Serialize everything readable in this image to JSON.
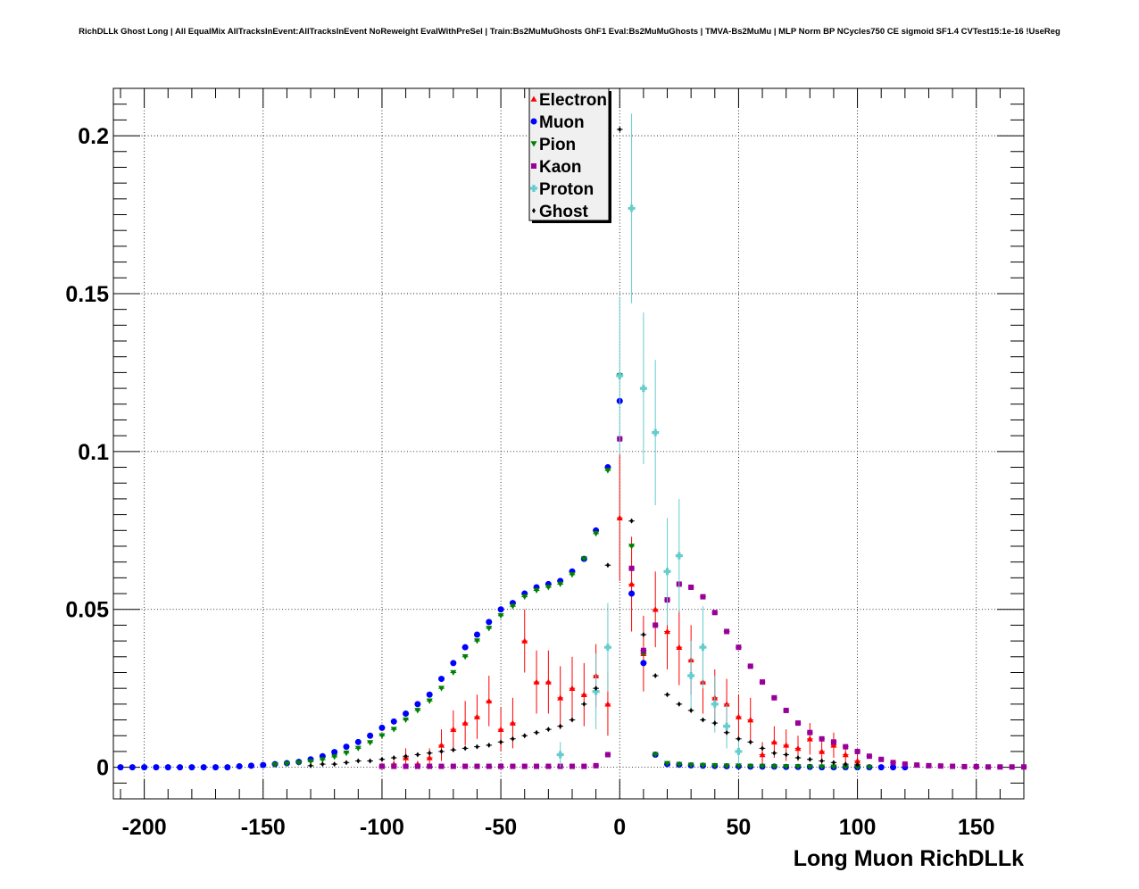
{
  "chart_data": {
    "type": "scatter",
    "title": "RichDLLk Ghost Long | All EqualMix AllTracksInEvent:AllTracksInEvent NoReweight EvalWithPreSel | Train:Bs2MuMuGhosts GhF1 Eval:Bs2MuMuGhosts | TMVA-Bs2MuMu | MLP Norm BP NCycles750 CE sigmoid SF1.4 CVTest15:1e-16 !UseReg",
    "xlabel": "Long Muon RichDLLk",
    "ylabel": "",
    "xlim": [
      -213,
      170
    ],
    "ylim": [
      -0.01,
      0.215
    ],
    "xticks": [
      -200,
      -150,
      -100,
      -50,
      0,
      50,
      100,
      150
    ],
    "xtick_labels": [
      "-200",
      "-150",
      "-100",
      "-50",
      "0",
      "50",
      "100",
      "150"
    ],
    "yticks": [
      0,
      0.05,
      0.1,
      0.15,
      0.2
    ],
    "ytick_labels": [
      "0",
      "0.05",
      "0.1",
      "0.15",
      "0.2"
    ],
    "grid": true,
    "legend_position": "top-center",
    "series": [
      {
        "name": "Electron",
        "color": "#ff0000",
        "marker": "triangle-up",
        "x": [
          -100,
          -95,
          -90,
          -85,
          -80,
          -75,
          -70,
          -65,
          -60,
          -55,
          -50,
          -45,
          -40,
          -35,
          -30,
          -25,
          -20,
          -15,
          -10,
          -5,
          0,
          5,
          10,
          15,
          20,
          25,
          30,
          35,
          40,
          45,
          50,
          55,
          60,
          65,
          70,
          75,
          80,
          85,
          90,
          95,
          100
        ],
        "y": [
          0.0005,
          0.001,
          0.003,
          0.001,
          0.003,
          0.007,
          0.012,
          0.014,
          0.016,
          0.021,
          0.012,
          0.014,
          0.04,
          0.027,
          0.027,
          0.022,
          0.025,
          0.023,
          0.029,
          0.02,
          0.079,
          0.058,
          0.036,
          0.05,
          0.043,
          0.038,
          0.034,
          0.027,
          0.022,
          0.02,
          0.016,
          0.015,
          0.004,
          0.008,
          0.007,
          0.006,
          0.009,
          0.005,
          0.007,
          0.004,
          0.002
        ],
        "err": [
          0.0005,
          0.001,
          0.003,
          0.001,
          0.003,
          0.005,
          0.006,
          0.007,
          0.007,
          0.008,
          0.007,
          0.008,
          0.01,
          0.01,
          0.01,
          0.01,
          0.01,
          0.01,
          0.01,
          0.01,
          0.02,
          0.015,
          0.012,
          0.012,
          0.012,
          0.012,
          0.011,
          0.01,
          0.009,
          0.008,
          0.007,
          0.007,
          0.004,
          0.005,
          0.005,
          0.004,
          0.005,
          0.004,
          0.004,
          0.003,
          0.002
        ]
      },
      {
        "name": "Muon",
        "color": "#0000ff",
        "marker": "circle",
        "x": [
          -210,
          -205,
          -200,
          -195,
          -190,
          -185,
          -180,
          -175,
          -170,
          -165,
          -160,
          -155,
          -150,
          -145,
          -140,
          -135,
          -130,
          -125,
          -120,
          -115,
          -110,
          -105,
          -100,
          -95,
          -90,
          -85,
          -80,
          -75,
          -70,
          -65,
          -60,
          -55,
          -50,
          -45,
          -40,
          -35,
          -30,
          -25,
          -20,
          -15,
          -10,
          -5,
          0,
          5,
          10,
          15,
          20,
          25,
          30,
          35,
          40,
          45,
          50,
          55,
          60,
          65,
          70,
          75,
          80,
          85,
          90,
          95,
          100,
          105,
          110,
          115,
          120
        ],
        "y": [
          0,
          0,
          0,
          0,
          0,
          0,
          0,
          0,
          0,
          0,
          0.0003,
          0.0005,
          0.0007,
          0.001,
          0.0013,
          0.0017,
          0.0025,
          0.0035,
          0.0048,
          0.0065,
          0.008,
          0.01,
          0.0125,
          0.0145,
          0.017,
          0.02,
          0.023,
          0.028,
          0.033,
          0.038,
          0.042,
          0.046,
          0.05,
          0.052,
          0.055,
          0.057,
          0.058,
          0.059,
          0.062,
          0.066,
          0.075,
          0.095,
          0.116,
          0.055,
          0.033,
          0.004,
          0.001,
          0.0008,
          0.0006,
          0.0005,
          0.0004,
          0.0003,
          0.0003,
          0.0002,
          0.0002,
          0.0002,
          0.0001,
          0.0001,
          0.0001,
          0,
          0,
          0,
          0,
          0,
          0,
          0,
          0
        ]
      },
      {
        "name": "Pion",
        "color": "#008000",
        "marker": "triangle-down",
        "x": [
          -145,
          -140,
          -135,
          -130,
          -125,
          -120,
          -115,
          -110,
          -105,
          -100,
          -95,
          -90,
          -85,
          -80,
          -75,
          -70,
          -65,
          -60,
          -55,
          -50,
          -45,
          -40,
          -35,
          -30,
          -25,
          -20,
          -15,
          -10,
          -5,
          0,
          5,
          10,
          15,
          20,
          25,
          30,
          35,
          40,
          45,
          50,
          55,
          60,
          65,
          70,
          75,
          80,
          85,
          90,
          95,
          100,
          105
        ],
        "y": [
          0.0008,
          0.0011,
          0.0014,
          0.0018,
          0.0024,
          0.0033,
          0.0045,
          0.006,
          0.0078,
          0.01,
          0.012,
          0.015,
          0.018,
          0.021,
          0.025,
          0.03,
          0.035,
          0.04,
          0.044,
          0.048,
          0.051,
          0.054,
          0.056,
          0.057,
          0.058,
          0.061,
          0.066,
          0.074,
          0.094,
          0.124,
          0.07,
          0.036,
          0.004,
          0.0012,
          0.0009,
          0.0007,
          0.0006,
          0.0005,
          0.0004,
          0.0004,
          0.0003,
          0.0003,
          0.0002,
          0.0002,
          0.0002,
          0.0001,
          0.0001,
          0.0001,
          0,
          0,
          0
        ]
      },
      {
        "name": "Kaon",
        "color": "#990099",
        "marker": "square",
        "x": [
          -100,
          -95,
          -90,
          -85,
          -80,
          -75,
          -70,
          -65,
          -60,
          -55,
          -50,
          -45,
          -40,
          -35,
          -30,
          -25,
          -20,
          -15,
          -10,
          -5,
          0,
          5,
          10,
          15,
          20,
          25,
          30,
          35,
          40,
          45,
          50,
          55,
          60,
          65,
          70,
          75,
          80,
          85,
          90,
          95,
          100,
          105,
          110,
          115,
          120,
          125,
          130,
          135,
          140,
          145,
          150,
          155,
          160,
          165,
          170
        ],
        "y": [
          0.0003,
          0.0003,
          0.0003,
          0.0003,
          0.0003,
          0.0003,
          0.0003,
          0.0003,
          0.0003,
          0.0003,
          0.0003,
          0.0003,
          0.0003,
          0.0003,
          0.0003,
          0.0003,
          0.0003,
          0.0003,
          0.0005,
          0.004,
          0.104,
          0.063,
          0.037,
          0.045,
          0.053,
          0.058,
          0.057,
          0.054,
          0.049,
          0.043,
          0.038,
          0.032,
          0.027,
          0.022,
          0.018,
          0.014,
          0.011,
          0.009,
          0.008,
          0.0065,
          0.005,
          0.0035,
          0.0025,
          0.0015,
          0.001,
          0.0007,
          0.0005,
          0.0004,
          0.0003,
          0.0002,
          0.0002,
          0.0001,
          0.0001,
          0.0001,
          0.0001
        ]
      },
      {
        "name": "Proton",
        "color": "#66cccc",
        "marker": "cross",
        "x": [
          -25,
          -10,
          -5,
          0,
          5,
          10,
          15,
          20,
          25,
          30,
          35,
          40,
          45,
          50
        ],
        "y": [
          0.004,
          0.024,
          0.038,
          0.124,
          0.177,
          0.12,
          0.106,
          0.062,
          0.067,
          0.029,
          0.038,
          0.02,
          0.013,
          0.005
        ],
        "err": [
          0.004,
          0.012,
          0.014,
          0.025,
          0.03,
          0.024,
          0.023,
          0.017,
          0.018,
          0.011,
          0.013,
          0.009,
          0.007,
          0.004
        ]
      },
      {
        "name": "Ghost",
        "color": "#000000",
        "marker": "diamond",
        "x": [
          -130,
          -125,
          -120,
          -115,
          -110,
          -105,
          -100,
          -95,
          -90,
          -85,
          -80,
          -75,
          -70,
          -65,
          -60,
          -55,
          -50,
          -45,
          -40,
          -35,
          -30,
          -25,
          -20,
          -15,
          -10,
          -5,
          0,
          5,
          10,
          15,
          20,
          25,
          30,
          35,
          40,
          45,
          50,
          55,
          60,
          65,
          70,
          75,
          80,
          85,
          90,
          95,
          100
        ],
        "y": [
          0.0005,
          0.001,
          0.001,
          0.0015,
          0.002,
          0.002,
          0.0025,
          0.003,
          0.0035,
          0.004,
          0.0045,
          0.005,
          0.0055,
          0.006,
          0.0065,
          0.007,
          0.008,
          0.009,
          0.01,
          0.011,
          0.012,
          0.013,
          0.015,
          0.02,
          0.025,
          0.064,
          0.202,
          0.078,
          0.042,
          0.029,
          0.023,
          0.02,
          0.018,
          0.015,
          0.014,
          0.011,
          0.009,
          0.008,
          0.006,
          0.0045,
          0.004,
          0.003,
          0.0025,
          0.002,
          0.0015,
          0.001,
          0.0008
        ]
      }
    ]
  }
}
